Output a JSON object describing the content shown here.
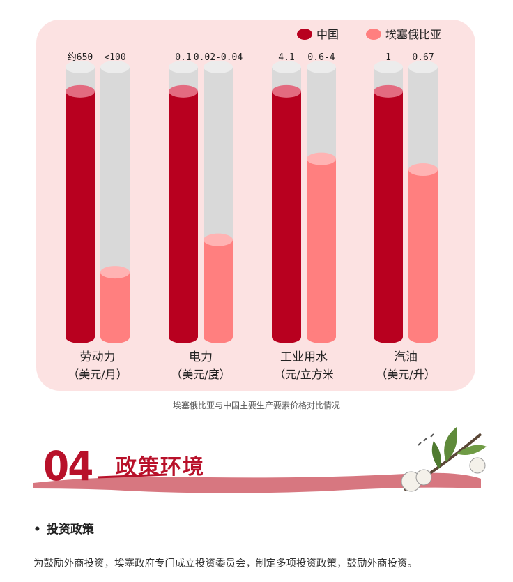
{
  "chart_data": {
    "type": "bar",
    "legend": {
      "placement": "top-right",
      "entries": [
        {
          "name": "中国",
          "color": "#b8001f"
        },
        {
          "name": "埃塞俄比亚",
          "color": "#ff7f7f"
        }
      ]
    },
    "categories": [
      {
        "label": "劳动力",
        "unit": "（美元/月）",
        "values": [
          {
            "label": "约650",
            "fill": 0.91
          },
          {
            "label": "<100",
            "fill": 0.24
          }
        ]
      },
      {
        "label": "电力",
        "unit": "（美元/度）",
        "values": [
          {
            "label": "0.1",
            "fill": 0.91
          },
          {
            "label": "0.02-0.04",
            "fill": 0.36
          }
        ]
      },
      {
        "label": "工业用水",
        "unit": "（元/立方米",
        "values": [
          {
            "label": "4.1",
            "fill": 0.91
          },
          {
            "label": "0.6-4",
            "fill": 0.66
          }
        ]
      },
      {
        "label": "汽油",
        "unit": "（美元/升）",
        "values": [
          {
            "label": "1",
            "fill": 0.91
          },
          {
            "label": "0.67",
            "fill": 0.62
          }
        ]
      }
    ],
    "colors": {
      "track": "#d9d9d9",
      "track_top": "#ececec",
      "china": "#b8001f",
      "china_top": "#e36b80",
      "ethiopia": "#ff7f7f",
      "ethiopia_top": "#ffb3b3"
    }
  },
  "caption": "埃塞俄比亚与中国主要生产要素价格对比情况",
  "section": {
    "number": "04",
    "title": "政策环境"
  },
  "bullet": {
    "symbol": "•",
    "label": "投资政策"
  },
  "body": "为鼓励外商投资，埃塞政府专门成立投资委员会，制定多项投资政策，鼓励外商投资。"
}
